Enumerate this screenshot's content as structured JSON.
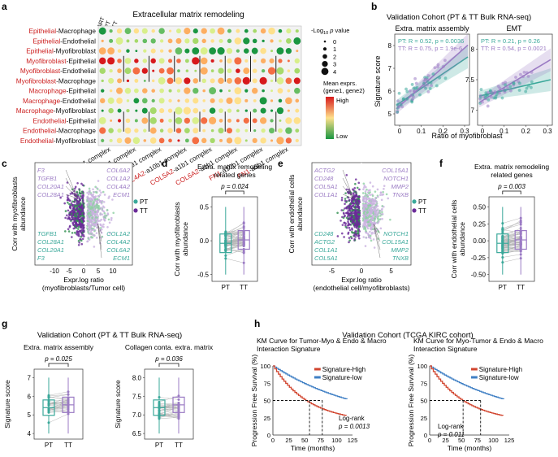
{
  "panels": {
    "a": {
      "label": "a",
      "title": "Extracellular matrix remodeling",
      "col_group_labels": [
        "ART",
        "PT",
        "TT"
      ],
      "rows": [
        [
          "Epithelial",
          "-Macrophage"
        ],
        [
          "Epithelial",
          "-Endothelial"
        ],
        [
          "Epithelial",
          "-Myofibroblast"
        ],
        [
          "Myofibroblast",
          "-Epithelial"
        ],
        [
          "Myofibroblast",
          "-Endothelial"
        ],
        [
          "Myofibroblast",
          "-Macrophage"
        ],
        [
          "Macrophage",
          "-Epithelial"
        ],
        [
          "Macrophage",
          "-Endothelial"
        ],
        [
          "Macrophage",
          "-Myofibroblast"
        ],
        [
          "Endothelial",
          "-Epithelial"
        ],
        [
          "Endothelial",
          "-Macrophage"
        ],
        [
          "Endothelial",
          "-Myofibroblast"
        ]
      ],
      "pairs": [
        [
          "COL1A1",
          "-a1b1 complex"
        ],
        [
          "COL3A1",
          "-a1b1 complex"
        ],
        [
          "COL4A1",
          "-a2b1 complex"
        ],
        [
          "COL4A2",
          "-a10b1 complex"
        ],
        [
          "COL5A2",
          "-a1b1 complex"
        ],
        [
          "COL6A2",
          "-a1b1 complex"
        ],
        [
          "FN1",
          "-a10b1 complex"
        ],
        [
          "FN1",
          "-a5b1 complex"
        ]
      ],
      "size_legend_title": "-Log10 p value",
      "size_legend_values": [
        "0",
        "1",
        "2",
        "3",
        "4"
      ],
      "color_legend_title": [
        "Mean exprs.",
        "(gene1, gene2)"
      ],
      "color_legend_high": "High",
      "color_legend_low": "Low",
      "colors": {
        "high": "#d7191c",
        "mid": "#fee08b",
        "low": "#1a9641",
        "red_text": "#cc1f1f"
      }
    },
    "b": {
      "label": "b",
      "title": "Validation Cohort (PT & TT Bulk RNA-seq)",
      "sub1": "Extra. matrix assembly",
      "sub2": "EMT",
      "ylabel": "Signature score",
      "xlabel": "Ratio of myofibroblast",
      "stats1": [
        "PT: R = 0.52, p = 0.0036",
        "TT: R = 0.75, p = 1.9e-6"
      ],
      "stats2": [
        "PT: R = 0.21, p = 0.26",
        "TT: R = 0.54, p = 0.0021"
      ],
      "yticks1": [
        "5",
        "6",
        "7",
        "8"
      ],
      "yticks2": [
        "7",
        "7.5",
        "8"
      ],
      "xticks": [
        "0",
        "0.1",
        "0.2",
        "0.3"
      ],
      "colors": {
        "PT": "#3aa89a",
        "TT": "#9b7bc4"
      }
    },
    "c": {
      "label": "c",
      "ylabel": [
        "Corr with myofibroblasts",
        "abundance"
      ],
      "xlabel": [
        "Expr.log ratio",
        "(myofibroblasts/Tumor cell)"
      ],
      "xticks": [
        "-10",
        "-5",
        "0",
        "5",
        "10"
      ],
      "legend": [
        "PT",
        "TT"
      ],
      "left_top": [
        "F3",
        "TGFB1",
        "COL20A1",
        "COL28A1"
      ],
      "left_bottom": [
        "TGFB1",
        "COL28A1",
        "COL20A1",
        "F3"
      ],
      "right_top": [
        "COL6A2",
        "COL1A2",
        "COL4A2",
        "ECM1"
      ],
      "right_bottom": [
        "COL1A2",
        "COL4A2",
        "COL6A2",
        "ECM1"
      ]
    },
    "d": {
      "label": "d",
      "title": [
        "Extra. matrix remodeling",
        "related genes"
      ],
      "ylabel": [
        "Corr with myofibroblasts",
        "abundance"
      ],
      "pvalue": "p = 0.024",
      "yticks": [
        "0.5",
        "0.0",
        "-0.5"
      ],
      "xticks": [
        "PT",
        "TT"
      ]
    },
    "e": {
      "label": "e",
      "ylabel": [
        "Corr with endothelial cells",
        "abundance"
      ],
      "xlabel": [
        "Expr.log ratio",
        "(endothelial cell/myofibroblasts)"
      ],
      "xticks": [
        "-5",
        "0",
        "5"
      ],
      "legend": [
        "PT",
        "TT"
      ],
      "left_top": [
        "ACTG2",
        "CD248",
        "COL5A1",
        "COL1A1"
      ],
      "left_bottom": [
        "CD248",
        "ACTG2",
        "COL1A1",
        "COL5A1"
      ],
      "right_top": [
        "COL15A1",
        "NOTCH1",
        "MMP2",
        "TNXB"
      ],
      "right_bottom": [
        "NOTCH1",
        "COL15A1",
        "MMP2",
        "TNXB"
      ]
    },
    "f": {
      "label": "f",
      "title": [
        "Extra. matrix remodeling",
        "related genes"
      ],
      "ylabel": [
        "Corr with endothelial cells",
        "abundance"
      ],
      "pvalue": "p = 0.003",
      "yticks": [
        "0.50",
        "0.25",
        "0.00",
        "-0.25",
        "-0.50"
      ],
      "xticks": [
        "PT",
        "TT"
      ]
    },
    "g": {
      "label": "g",
      "title": "Validation Cohort (PT & TT Bulk RNA-seq)",
      "sub1": "Extra. matrix assembly",
      "sub2": "Collagen conta. extra. matrix",
      "ylabel": "Signature score",
      "p1": "p = 0.025",
      "p2": "p = 0.036",
      "yticks1": [
        "7",
        "6",
        "5",
        "4"
      ],
      "yticks2": [
        "8.0",
        "7.5",
        "7.0",
        "6.5"
      ],
      "xticks": [
        "PT",
        "TT"
      ]
    },
    "h": {
      "label": "h",
      "title": "Validation Cohort (TCGA KIRC cohort)",
      "sub1": [
        "KM Curve for Tumor-Myo & Endo  & Macro",
        "Interaction Signature"
      ],
      "sub2": [
        "KM Curve for Myo-Tumor & Endo  & Macro",
        "Interaction Signature"
      ],
      "ylabel": "Progression Free Survival (%)",
      "xlabel": "Time (months)",
      "legend": [
        "Signature-High",
        "Signature-low"
      ],
      "logrank1": [
        "Log-rank",
        "p = 0.0013"
      ],
      "logrank2": [
        "Log-rank",
        "p = 0.011"
      ],
      "yticks": [
        "100",
        "75",
        "50",
        "25",
        "0"
      ],
      "xticks": [
        "0",
        "25",
        "50",
        "75",
        "100",
        "125"
      ],
      "colors": {
        "high": "#d1452f",
        "low": "#3f7fc4"
      }
    }
  }
}
